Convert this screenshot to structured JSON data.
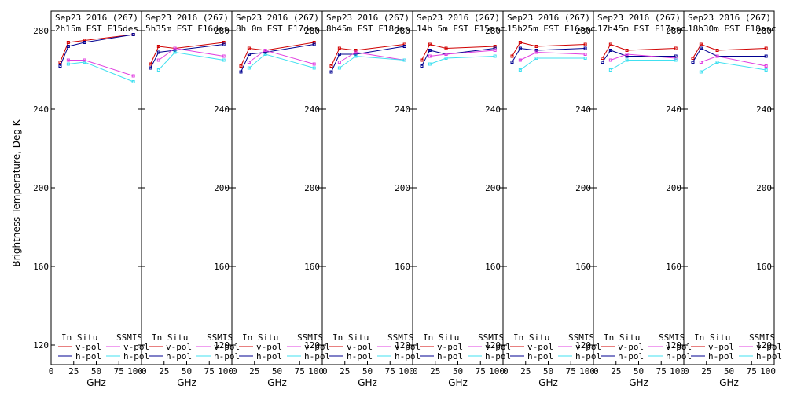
{
  "figure": {
    "ylabel": "Brightness Temperature, Deg K",
    "xlabel": "GHz",
    "legend": {
      "insitu_title": "In Situ",
      "ssmis_title": "SSMIS",
      "vpol": "v-pol",
      "hpol": "h-pol"
    },
    "colors": {
      "insitu_v": "#d00000",
      "insitu_h": "#000090",
      "ssmis_v": "#e040e0",
      "ssmis_h": "#40e0f0"
    }
  },
  "chart_data": [
    {
      "type": "line",
      "title": "Sep23 2016 (267)",
      "subtitle": "2h15m EST F15des",
      "xlim": [
        0,
        100
      ],
      "ylim": [
        110,
        290
      ],
      "xticks": [
        0,
        25,
        50,
        75,
        100
      ],
      "yticks": [
        120,
        160,
        200,
        240,
        280
      ],
      "x": [
        10,
        19,
        37,
        91
      ],
      "series": [
        {
          "name": "In Situ v-pol",
          "values": [
            264,
            274,
            275,
            278
          ]
        },
        {
          "name": "In Situ h-pol",
          "values": [
            262,
            272,
            274,
            278
          ]
        },
        {
          "name": "SSMIS v-pol",
          "values": [
            null,
            265,
            265,
            257
          ]
        },
        {
          "name": "SSMIS h-pol",
          "values": [
            null,
            263,
            264,
            254
          ]
        }
      ]
    },
    {
      "type": "line",
      "title": "Sep23 2016 (267)",
      "subtitle": "5h35m EST F16des",
      "xlim": [
        0,
        100
      ],
      "ylim": [
        110,
        290
      ],
      "xticks": [
        0,
        25,
        50,
        75,
        100
      ],
      "yticks": [
        120,
        160,
        200,
        240,
        280
      ],
      "x": [
        10,
        19,
        37,
        91
      ],
      "series": [
        {
          "name": "In Situ v-pol",
          "values": [
            263,
            272,
            271,
            274
          ]
        },
        {
          "name": "In Situ h-pol",
          "values": [
            261,
            269,
            270,
            273
          ]
        },
        {
          "name": "SSMIS v-pol",
          "values": [
            null,
            265,
            271,
            267
          ]
        },
        {
          "name": "SSMIS h-pol",
          "values": [
            null,
            260,
            269,
            265
          ]
        }
      ]
    },
    {
      "type": "line",
      "title": "Sep23 2016 (267)",
      "subtitle": "8h 0m EST F17des",
      "xlim": [
        0,
        100
      ],
      "ylim": [
        110,
        290
      ],
      "xticks": [
        0,
        25,
        50,
        75,
        100
      ],
      "yticks": [
        120,
        160,
        200,
        240,
        280
      ],
      "x": [
        10,
        19,
        37,
        91
      ],
      "series": [
        {
          "name": "In Situ v-pol",
          "values": [
            262,
            271,
            270,
            274
          ]
        },
        {
          "name": "In Situ h-pol",
          "values": [
            259,
            268,
            269,
            273
          ]
        },
        {
          "name": "SSMIS v-pol",
          "values": [
            null,
            264,
            270,
            263
          ]
        },
        {
          "name": "SSMIS h-pol",
          "values": [
            null,
            261,
            268,
            261
          ]
        }
      ]
    },
    {
      "type": "line",
      "title": "Sep23 2016 (267)",
      "subtitle": "8h45m EST F18des",
      "xlim": [
        0,
        100
      ],
      "ylim": [
        110,
        290
      ],
      "xticks": [
        0,
        25,
        50,
        75,
        100
      ],
      "yticks": [
        120,
        160,
        200,
        240,
        280
      ],
      "x": [
        10,
        19,
        37,
        91
      ],
      "series": [
        {
          "name": "In Situ v-pol",
          "values": [
            262,
            271,
            270,
            273
          ]
        },
        {
          "name": "In Situ h-pol",
          "values": [
            259,
            268,
            268,
            272
          ]
        },
        {
          "name": "SSMIS v-pol",
          "values": [
            null,
            264,
            269,
            265
          ]
        },
        {
          "name": "SSMIS h-pol",
          "values": [
            null,
            261,
            267,
            265
          ]
        }
      ]
    },
    {
      "type": "line",
      "title": "Sep23 2016 (267)",
      "subtitle": "14h 5m EST F15asc",
      "xlim": [
        0,
        100
      ],
      "ylim": [
        110,
        290
      ],
      "xticks": [
        0,
        25,
        50,
        75,
        100
      ],
      "yticks": [
        120,
        160,
        200,
        240,
        280
      ],
      "x": [
        10,
        19,
        37,
        91
      ],
      "series": [
        {
          "name": "In Situ v-pol",
          "values": [
            265,
            273,
            271,
            272
          ]
        },
        {
          "name": "In Situ h-pol",
          "values": [
            262,
            270,
            268,
            271
          ]
        },
        {
          "name": "SSMIS v-pol",
          "values": [
            null,
            267,
            268,
            270
          ]
        },
        {
          "name": "SSMIS h-pol",
          "values": [
            null,
            263,
            266,
            267
          ]
        }
      ]
    },
    {
      "type": "line",
      "title": "Sep23 2016 (267)",
      "subtitle": "15h25m EST F16asc",
      "xlim": [
        0,
        100
      ],
      "ylim": [
        110,
        290
      ],
      "xticks": [
        0,
        25,
        50,
        75,
        100
      ],
      "yticks": [
        120,
        160,
        200,
        240,
        280
      ],
      "x": [
        10,
        19,
        37,
        91
      ],
      "series": [
        {
          "name": "In Situ v-pol",
          "values": [
            267,
            274,
            272,
            273
          ]
        },
        {
          "name": "In Situ h-pol",
          "values": [
            264,
            271,
            270,
            271
          ]
        },
        {
          "name": "SSMIS v-pol",
          "values": [
            null,
            265,
            269,
            268
          ]
        },
        {
          "name": "SSMIS h-pol",
          "values": [
            null,
            260,
            266,
            266
          ]
        }
      ]
    },
    {
      "type": "line",
      "title": "Sep23 2016 (267)",
      "subtitle": "17h45m EST F17asc",
      "xlim": [
        0,
        100
      ],
      "ylim": [
        110,
        290
      ],
      "xticks": [
        0,
        25,
        50,
        75,
        100
      ],
      "yticks": [
        120,
        160,
        200,
        240,
        280
      ],
      "x": [
        10,
        19,
        37,
        91
      ],
      "series": [
        {
          "name": "In Situ v-pol",
          "values": [
            266,
            273,
            270,
            271
          ]
        },
        {
          "name": "In Situ h-pol",
          "values": [
            264,
            270,
            267,
            267
          ]
        },
        {
          "name": "SSMIS v-pol",
          "values": [
            null,
            265,
            268,
            266
          ]
        },
        {
          "name": "SSMIS h-pol",
          "values": [
            null,
            260,
            265,
            265
          ]
        }
      ]
    },
    {
      "type": "line",
      "title": "Sep23 2016 (267)",
      "subtitle": "18h30m EST F18asc",
      "xlim": [
        0,
        100
      ],
      "ylim": [
        110,
        290
      ],
      "xticks": [
        0,
        25,
        50,
        75,
        100
      ],
      "yticks": [
        120,
        160,
        200,
        240,
        280
      ],
      "x": [
        10,
        19,
        37,
        91
      ],
      "series": [
        {
          "name": "In Situ v-pol",
          "values": [
            266,
            273,
            270,
            271
          ]
        },
        {
          "name": "In Situ h-pol",
          "values": [
            264,
            271,
            267,
            267
          ]
        },
        {
          "name": "SSMIS v-pol",
          "values": [
            null,
            264,
            267,
            262
          ]
        },
        {
          "name": "SSMIS h-pol",
          "values": [
            null,
            259,
            264,
            260
          ]
        }
      ]
    }
  ]
}
